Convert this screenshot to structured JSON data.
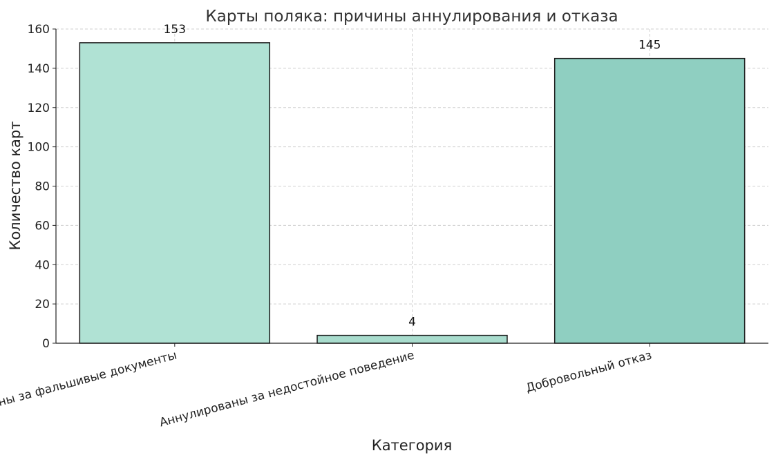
{
  "chart_data": {
    "type": "bar",
    "title": "Карты поляка: причины аннулирования и отказа",
    "xlabel": "Категория",
    "ylabel": "Количество карт",
    "categories": [
      "Аннулированы за фальшивые документы",
      "Аннулированы за недостойное поведение",
      "Добровольный отказ"
    ],
    "values": [
      153,
      4,
      145
    ],
    "value_labels": [
      "153",
      "4",
      "145"
    ],
    "ylim": [
      0,
      160
    ],
    "yticks": [
      0,
      20,
      40,
      60,
      80,
      100,
      120,
      140,
      160
    ],
    "ytick_labels": [
      "0",
      "20",
      "40",
      "60",
      "80",
      "100",
      "120",
      "140",
      "160"
    ],
    "grid": true,
    "bar_colors": [
      "#b0e2d4",
      "#a8dccd",
      "#8fcfc1"
    ],
    "bar_edge_color": "#1a1a1a"
  }
}
